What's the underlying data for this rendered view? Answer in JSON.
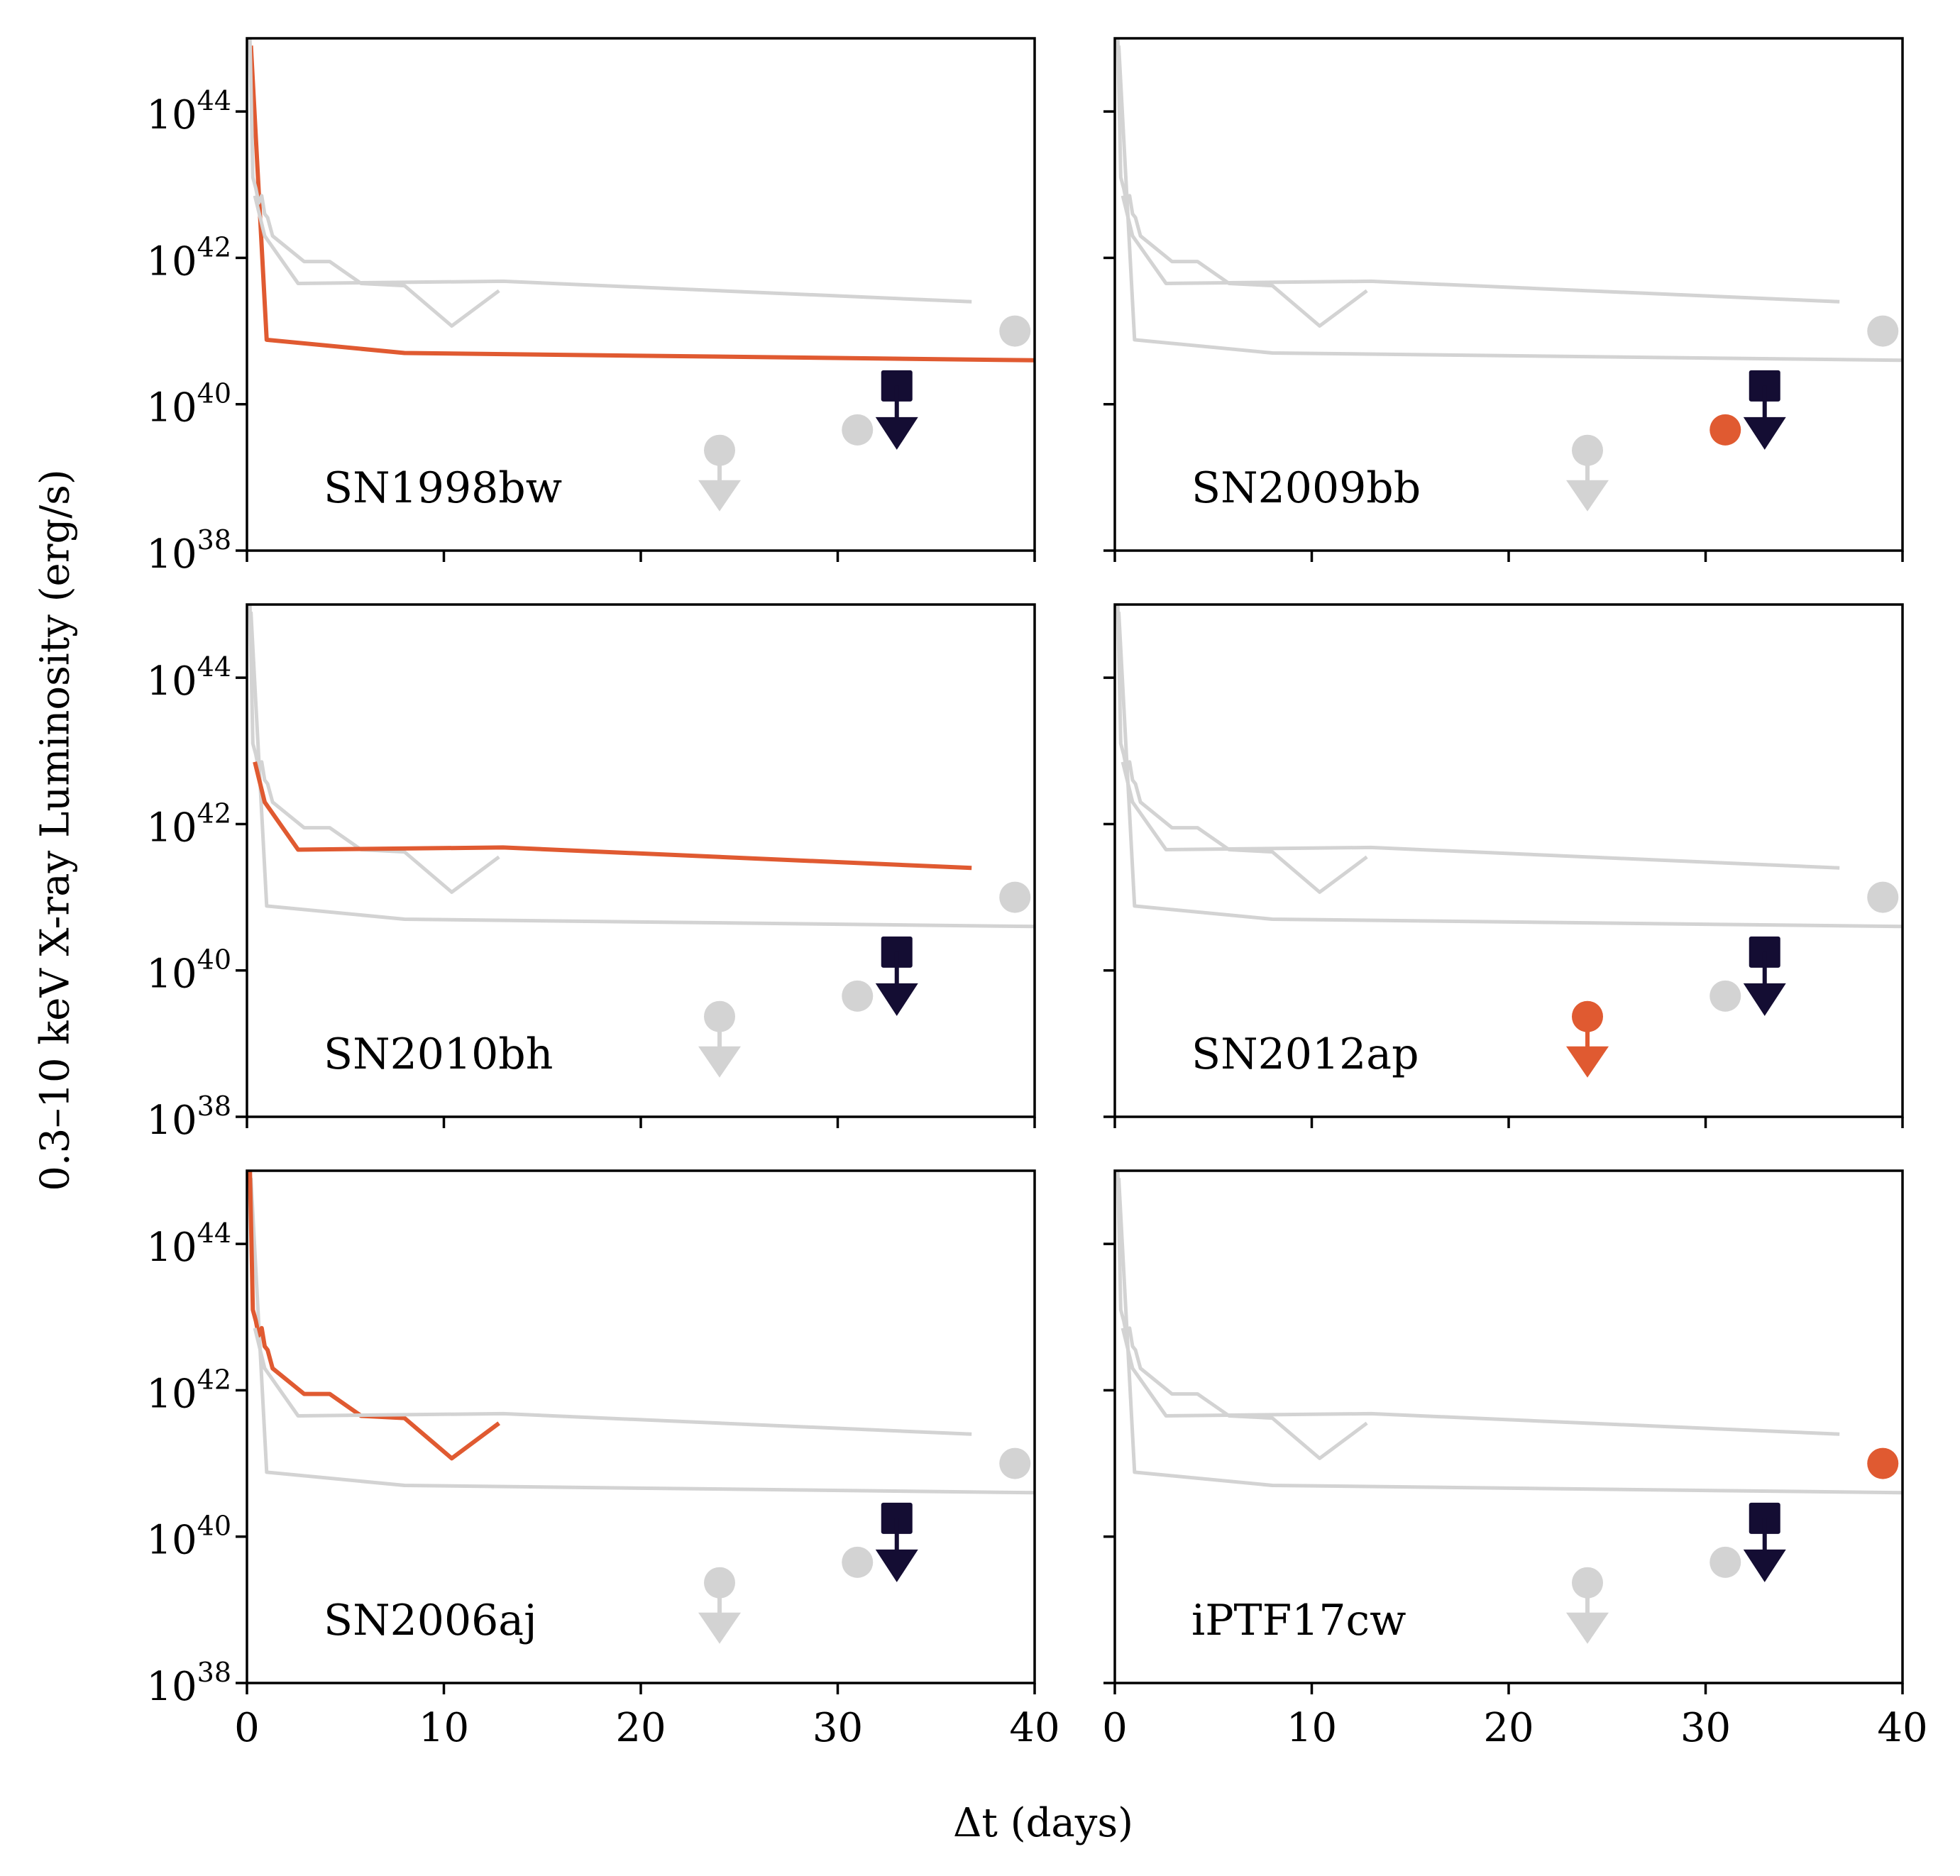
{
  "figure": {
    "ylabel": "0.3–10 keV X-ray Luminosity (erg/s)",
    "xlabel": "Δt (days)"
  },
  "colors": {
    "highlight": "#e05a31",
    "background_series": "#d3d3d3",
    "reference": "#140d33",
    "axis": "#000000"
  },
  "chart_data": {
    "type": "line",
    "xlim": [
      0,
      40
    ],
    "ylim_log10": [
      38,
      45
    ],
    "xticks": [
      0,
      10,
      20,
      30,
      40
    ],
    "yticks_log10": [
      38,
      40,
      42,
      44
    ],
    "ytick_labels": [
      {
        "base": "10",
        "exp": "38"
      },
      {
        "base": "10",
        "exp": "40"
      },
      {
        "base": "10",
        "exp": "42"
      },
      {
        "base": "10",
        "exp": "44"
      }
    ],
    "grid": false,
    "series": [
      {
        "name": "SN1998bw",
        "kind": "line",
        "x": [
          0.2,
          1.0,
          8.0,
          40.0
        ],
        "log10y": [
          44.9,
          40.88,
          40.7,
          40.6
        ]
      },
      {
        "name": "SN2006aj",
        "kind": "line",
        "x": [
          0.15,
          0.3,
          0.45,
          0.6,
          0.75,
          0.9,
          1.05,
          1.3,
          2.9,
          4.2,
          5.8,
          8.0,
          10.4,
          12.8
        ],
        "log10y": [
          45.0,
          43.1,
          42.95,
          42.75,
          42.85,
          42.6,
          42.55,
          42.3,
          41.95,
          41.95,
          41.65,
          41.62,
          41.07,
          41.55
        ]
      },
      {
        "name": "SN2010bh",
        "kind": "line",
        "x": [
          0.4,
          0.9,
          2.6,
          13.0,
          36.8
        ],
        "log10y": [
          42.85,
          42.3,
          41.65,
          41.68,
          41.4
        ]
      },
      {
        "name": "SN2009bb",
        "kind": "point",
        "x": 31.0,
        "log10y": 39.65
      },
      {
        "name": "SN2012ap",
        "kind": "upper_limit",
        "x": 24.0,
        "log10y": 39.37
      },
      {
        "name": "iPTF17cw",
        "kind": "point",
        "x": 39.0,
        "log10y": 41.0
      },
      {
        "name": "reference",
        "kind": "upper_limit_square",
        "x": 33.0,
        "log10y": 40.25
      }
    ]
  },
  "panels": [
    {
      "name": "SN1998bw",
      "label": "SN1998bw"
    },
    {
      "name": "SN2009bb",
      "label": "SN2009bb"
    },
    {
      "name": "SN2010bh",
      "label": "SN2010bh"
    },
    {
      "name": "SN2012ap",
      "label": "SN2012ap"
    },
    {
      "name": "SN2006aj",
      "label": "SN2006aj"
    },
    {
      "name": "iPTF17cw",
      "label": "iPTF17cw"
    }
  ]
}
